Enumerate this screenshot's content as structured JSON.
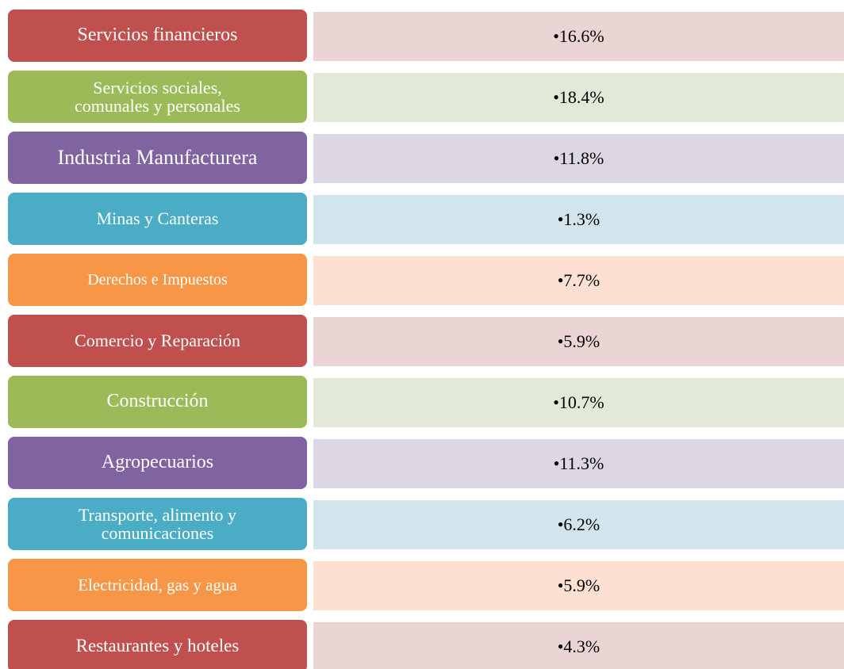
{
  "items": [
    {
      "lines": [
        "Servicios financieros"
      ],
      "value": "•16.6%"
    },
    {
      "lines": [
        "Servicios sociales,",
        "comunales y personales"
      ],
      "value": "•18.4%"
    },
    {
      "lines": [
        "Industria Manufacturera"
      ],
      "value": "•11.8%"
    },
    {
      "lines": [
        "Minas y Canteras"
      ],
      "value": "•1.3%"
    },
    {
      "lines": [
        "Derechos e Impuestos"
      ],
      "value": "•7.7%"
    },
    {
      "lines": [
        "Comercio y Reparación"
      ],
      "value": "•5.9%"
    },
    {
      "lines": [
        "Construcción"
      ],
      "value": "•10.7%"
    },
    {
      "lines": [
        "Agropecuarios"
      ],
      "value": "•11.3%"
    },
    {
      "lines": [
        "Transporte, alimento y",
        "comunicaciones"
      ],
      "value": "•6.2%"
    },
    {
      "lines": [
        "Electricidad, gas y agua"
      ],
      "value": "•5.9%"
    },
    {
      "lines": [
        "Restaurantes y hoteles"
      ],
      "value": "•4.3%"
    }
  ]
}
